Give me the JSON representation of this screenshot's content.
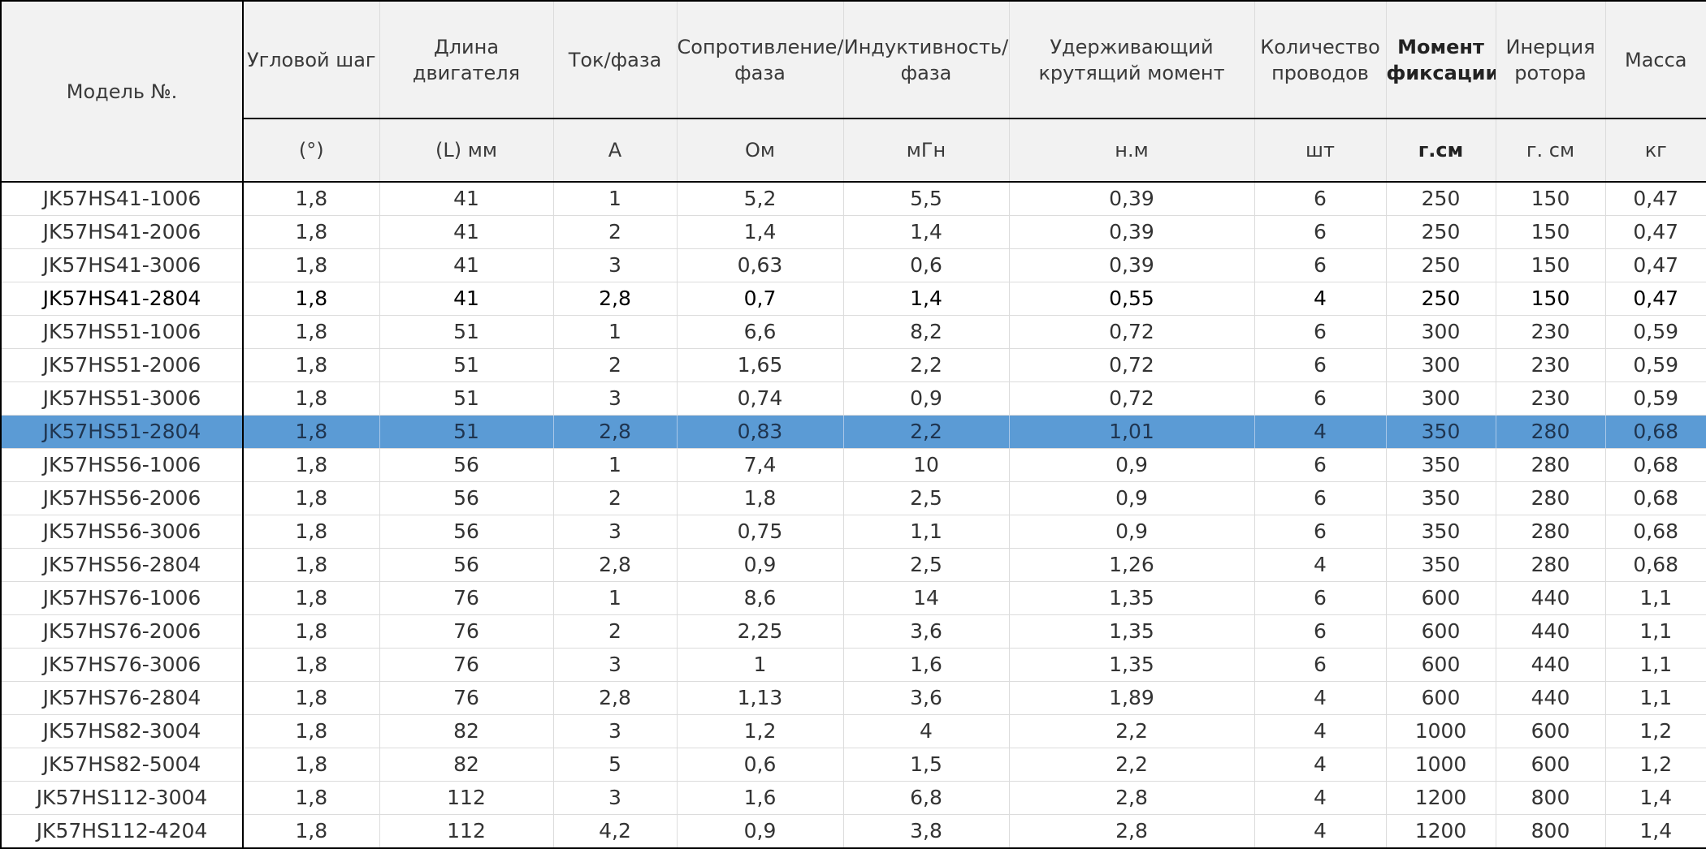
{
  "table": {
    "header_names": [
      "Угловой шаг",
      "Длина двигателя",
      "Ток/фаза",
      "Сопротивление/\nфаза",
      "Индуктивность/\nфаза",
      "Удерживающий\nкрутящий момент",
      "Количество\nпроводов",
      "Момент\nфиксации",
      "Инерция\nротора",
      "Масса"
    ],
    "model_header": "Модель №.",
    "units": [
      "(°)",
      "(L) мм",
      "А",
      "Ом",
      "мГн",
      "н.м",
      "шт",
      "г.см",
      "г. см",
      "кг"
    ],
    "bold_header_index": 7,
    "bold_row_index": 3,
    "selected_row_index": 7,
    "selected_row_color": "#5b9bd5",
    "rows": [
      [
        "JK57HS41-1006",
        "1,8",
        "41",
        "1",
        "5,2",
        "5,5",
        "0,39",
        "6",
        "250",
        "150",
        "0,47"
      ],
      [
        "JK57HS41-2006",
        "1,8",
        "41",
        "2",
        "1,4",
        "1,4",
        "0,39",
        "6",
        "250",
        "150",
        "0,47"
      ],
      [
        "JK57HS41-3006",
        "1,8",
        "41",
        "3",
        "0,63",
        "0,6",
        "0,39",
        "6",
        "250",
        "150",
        "0,47"
      ],
      [
        "JK57HS41-2804",
        "1,8",
        "41",
        "2,8",
        "0,7",
        "1,4",
        "0,55",
        "4",
        "250",
        "150",
        "0,47"
      ],
      [
        "JK57HS51-1006",
        "1,8",
        "51",
        "1",
        "6,6",
        "8,2",
        "0,72",
        "6",
        "300",
        "230",
        "0,59"
      ],
      [
        "JK57HS51-2006",
        "1,8",
        "51",
        "2",
        "1,65",
        "2,2",
        "0,72",
        "6",
        "300",
        "230",
        "0,59"
      ],
      [
        "JK57HS51-3006",
        "1,8",
        "51",
        "3",
        "0,74",
        "0,9",
        "0,72",
        "6",
        "300",
        "230",
        "0,59"
      ],
      [
        "JK57HS51-2804",
        "1,8",
        "51",
        "2,8",
        "0,83",
        "2,2",
        "1,01",
        "4",
        "350",
        "280",
        "0,68"
      ],
      [
        "JK57HS56-1006",
        "1,8",
        "56",
        "1",
        "7,4",
        "10",
        "0,9",
        "6",
        "350",
        "280",
        "0,68"
      ],
      [
        "JK57HS56-2006",
        "1,8",
        "56",
        "2",
        "1,8",
        "2,5",
        "0,9",
        "6",
        "350",
        "280",
        "0,68"
      ],
      [
        "JK57HS56-3006",
        "1,8",
        "56",
        "3",
        "0,75",
        "1,1",
        "0,9",
        "6",
        "350",
        "280",
        "0,68"
      ],
      [
        "JK57HS56-2804",
        "1,8",
        "56",
        "2,8",
        "0,9",
        "2,5",
        "1,26",
        "4",
        "350",
        "280",
        "0,68"
      ],
      [
        "JK57HS76-1006",
        "1,8",
        "76",
        "1",
        "8,6",
        "14",
        "1,35",
        "6",
        "600",
        "440",
        "1,1"
      ],
      [
        "JK57HS76-2006",
        "1,8",
        "76",
        "2",
        "2,25",
        "3,6",
        "1,35",
        "6",
        "600",
        "440",
        "1,1"
      ],
      [
        "JK57HS76-3006",
        "1,8",
        "76",
        "3",
        "1",
        "1,6",
        "1,35",
        "6",
        "600",
        "440",
        "1,1"
      ],
      [
        "JK57HS76-2804",
        "1,8",
        "76",
        "2,8",
        "1,13",
        "3,6",
        "1,89",
        "4",
        "600",
        "440",
        "1,1"
      ],
      [
        "JK57HS82-3004",
        "1,8",
        "82",
        "3",
        "1,2",
        "4",
        "2,2",
        "4",
        "1000",
        "600",
        "1,2"
      ],
      [
        "JK57HS82-5004",
        "1,8",
        "82",
        "5",
        "0,6",
        "1,5",
        "2,2",
        "4",
        "1000",
        "600",
        "1,2"
      ],
      [
        "JK57HS112-3004",
        "1,8",
        "112",
        "3",
        "1,6",
        "6,8",
        "2,8",
        "4",
        "1200",
        "800",
        "1,4"
      ],
      [
        "JK57HS112-4204",
        "1,8",
        "112",
        "4,2",
        "0,9",
        "3,8",
        "2,8",
        "4",
        "1200",
        "800",
        "1,4"
      ]
    ]
  }
}
